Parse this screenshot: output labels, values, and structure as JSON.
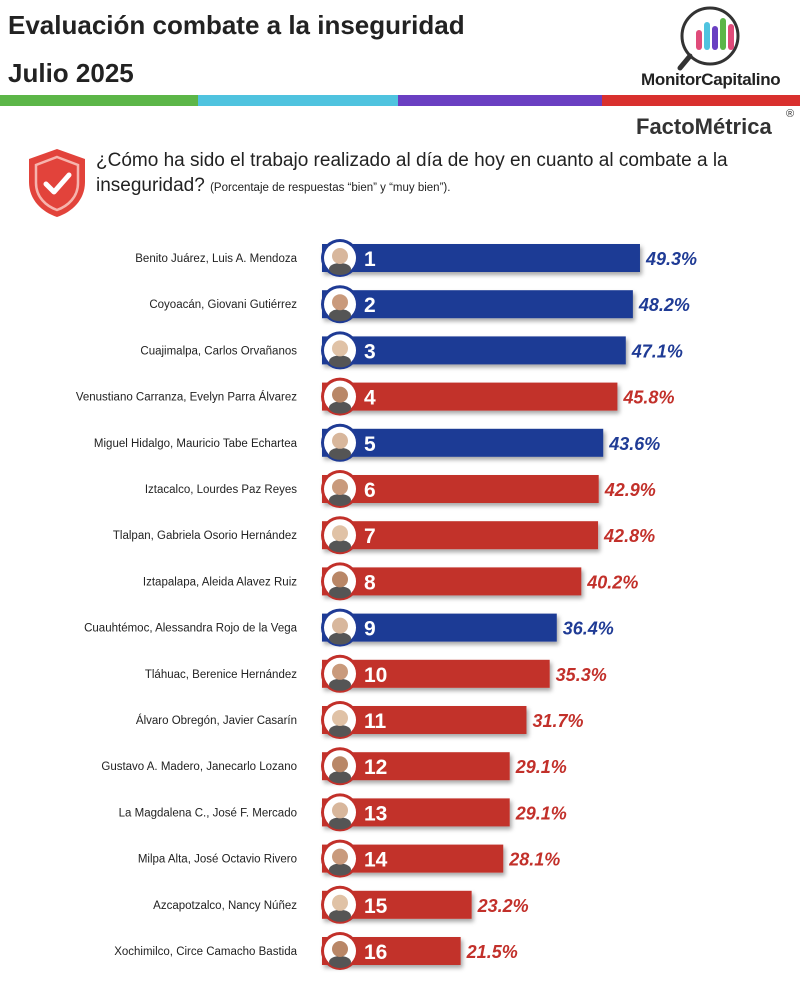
{
  "header": {
    "title": "Evaluación combate a la inseguridad",
    "subtitle": "Julio 2025",
    "stripe_colors": [
      "#5cb648",
      "#4fc3df",
      "#6a3fc2",
      "#d9302e"
    ],
    "monitor_logo": "MonitorCapitalino",
    "factometrica_logo": "FactoMétrica",
    "registered_mark": "®"
  },
  "question": {
    "icon": "shield-check-icon",
    "text": "¿Cómo ha sido el trabajo realizado al día de hoy en cuanto al combate a la inseguridad?",
    "note": "(Porcentaje de respuestas “bien” y “muy bien”)."
  },
  "chart_data": {
    "type": "bar",
    "orientation": "horizontal",
    "unit": "%",
    "xlim": [
      0,
      50
    ],
    "colors": {
      "blue": "#1f3b95",
      "red": "#c2302a"
    },
    "categories": [
      "Benito Juárez, Luis A. Mendoza",
      "Coyoacán, Giovani Gutiérrez",
      "Cuajimalpa, Carlos Orvañanos",
      "Venustiano Carranza, Evelyn Parra Álvarez",
      "Miguel Hidalgo, Mauricio Tabe Echartea",
      "Iztacalco, Lourdes Paz Reyes",
      "Tlalpan, Gabriela Osorio Hernández",
      "Iztapalapa, Aleida Alavez Ruiz",
      "Cuauhtémoc, Alessandra Rojo de la Vega",
      "Tláhuac, Berenice Hernández",
      "Álvaro Obregón, Javier Casarín",
      "Gustavo A. Madero, Janecarlo Lozano",
      "La Magdalena C., José F. Mercado",
      "Milpa Alta, José Octavio Rivero",
      "Azcapotzalco, Nancy Núñez",
      "Xochimilco, Circe Camacho Bastida"
    ],
    "ranks": [
      "1",
      "2",
      "3",
      "4",
      "5",
      "6",
      "7",
      "8",
      "9",
      "10",
      "11",
      "12",
      "13",
      "14",
      "15",
      "16"
    ],
    "values": [
      49.3,
      48.2,
      47.1,
      45.8,
      43.6,
      42.9,
      42.8,
      40.2,
      36.4,
      35.3,
      31.7,
      29.1,
      29.1,
      28.1,
      23.2,
      21.5
    ],
    "value_labels": [
      "49.3%",
      "48.2%",
      "47.1%",
      "45.8%",
      "43.6%",
      "42.9%",
      "42.8%",
      "40.2%",
      "36.4%",
      "35.3%",
      "31.7%",
      "29.1%",
      "29.1%",
      "28.1%",
      "23.2%",
      "21.5%"
    ],
    "bar_colors": [
      "blue",
      "blue",
      "blue",
      "red",
      "blue",
      "red",
      "red",
      "red",
      "blue",
      "red",
      "red",
      "red",
      "red",
      "red",
      "red",
      "red"
    ]
  }
}
